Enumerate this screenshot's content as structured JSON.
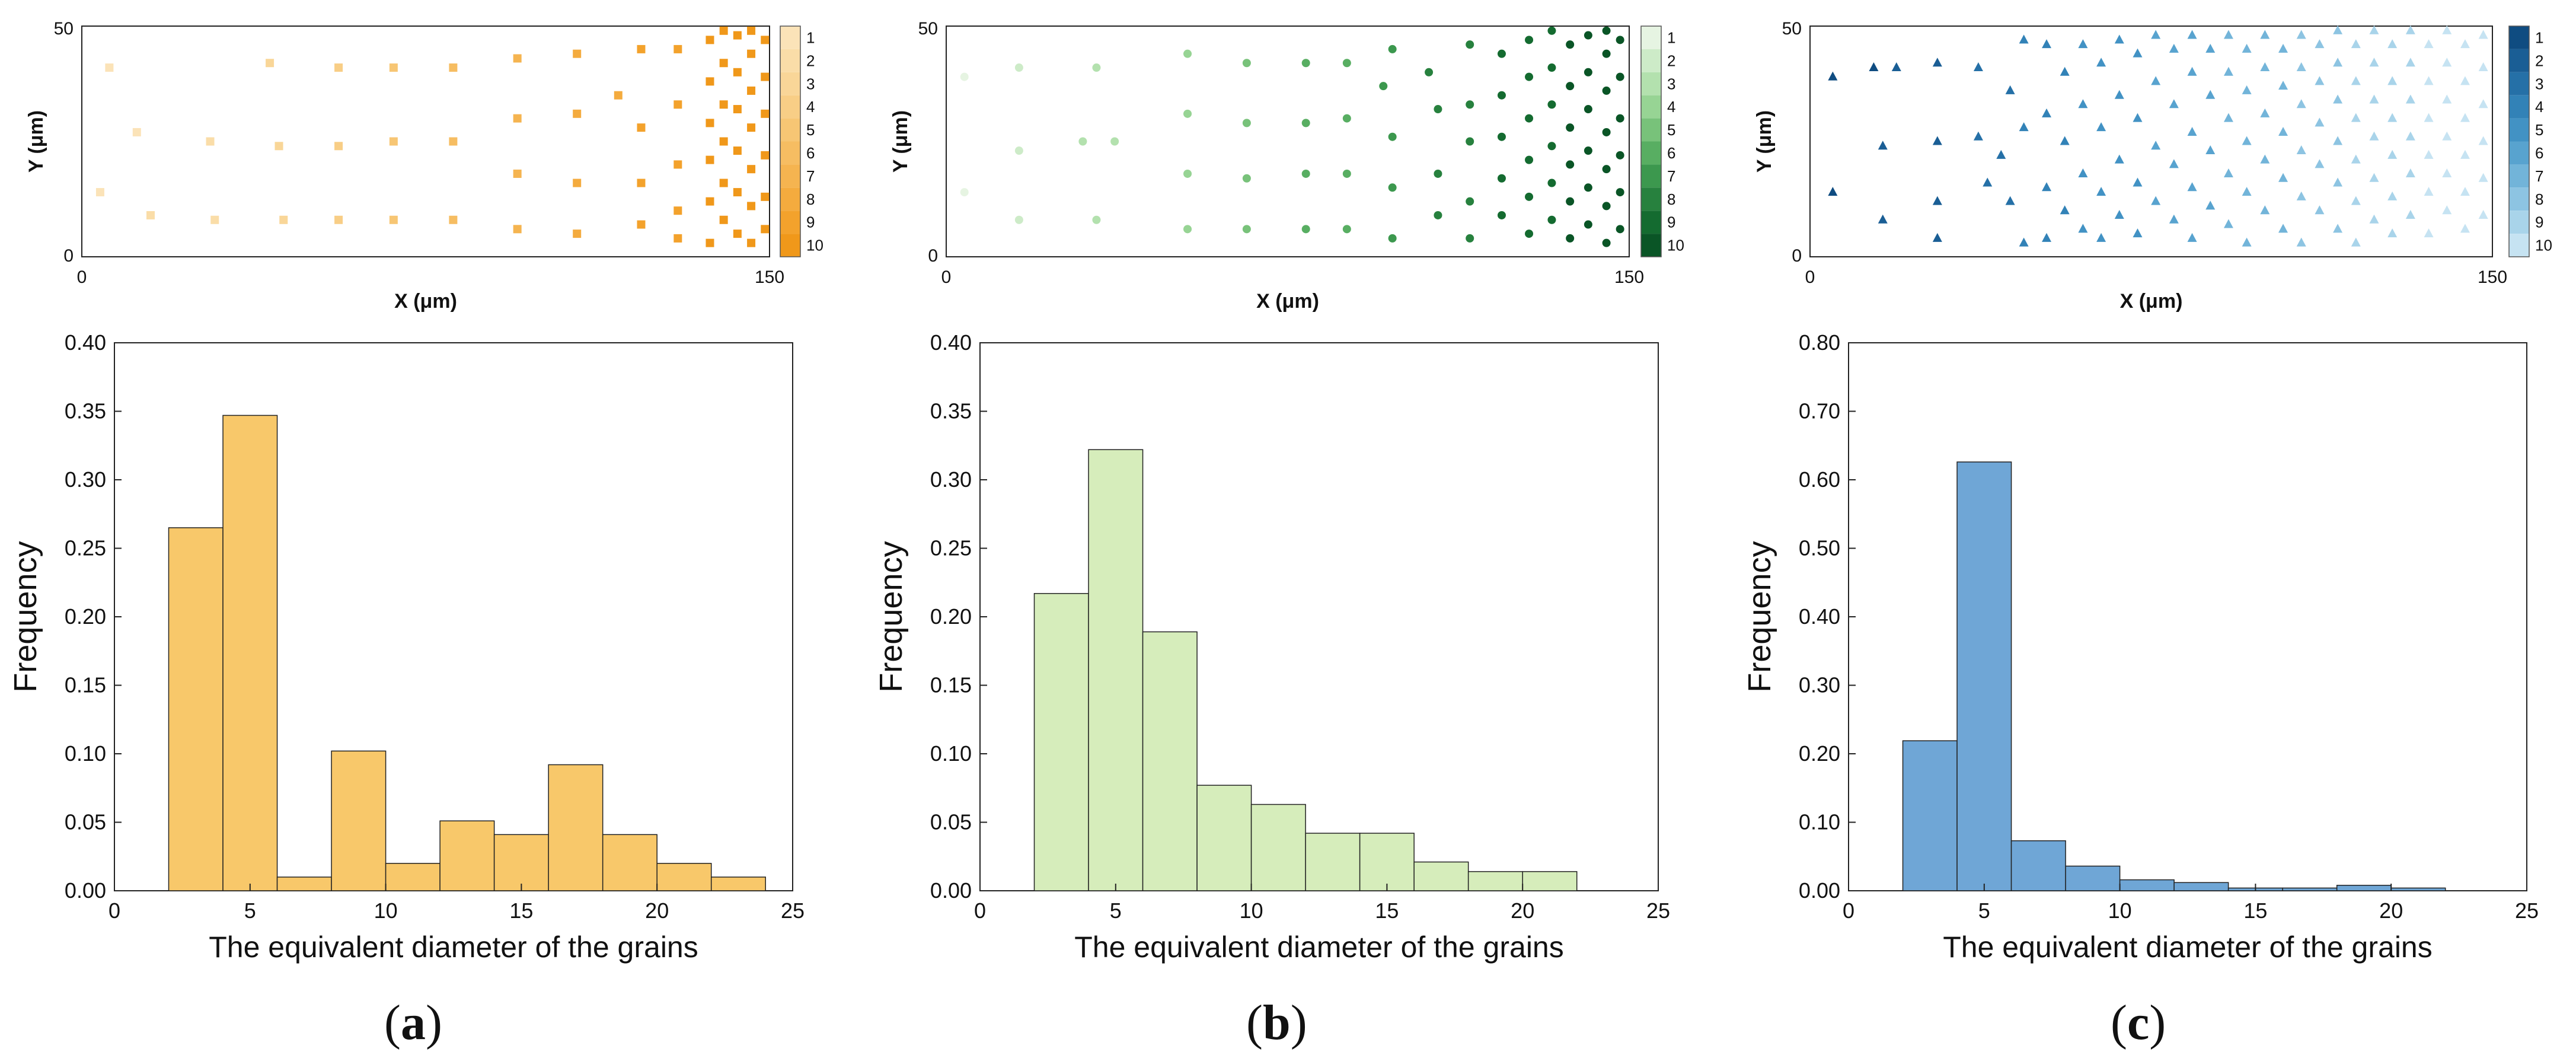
{
  "figure": {
    "panel_labels": [
      "(a)",
      "(b)",
      "(c)"
    ]
  },
  "chart_data": [
    {
      "type": "scatter",
      "panel": "a",
      "xlabel": "X (μm)",
      "ylabel": "Y (μm)",
      "xlim": [
        0,
        150
      ],
      "ylim": [
        0,
        50
      ],
      "x_ticks": [
        "0",
        "150"
      ],
      "y_ticks": [
        "0",
        "50"
      ],
      "marker": "square",
      "color": "#F0A020",
      "legend_ticks": [
        "1",
        "2",
        "3",
        "4",
        "5",
        "6",
        "7",
        "8",
        "9",
        "10"
      ],
      "legend_colors": [
        "#FBE3B8",
        "#FADDA8",
        "#F9D698",
        "#F8CE86",
        "#F7C674",
        "#F6BD62",
        "#F5B450",
        "#F4AB3E",
        "#F3A22C",
        "#F0981A"
      ],
      "points": [
        [
          6,
          41
        ],
        [
          4,
          14
        ],
        [
          12,
          27
        ],
        [
          15,
          9
        ],
        [
          28,
          25
        ],
        [
          29,
          8
        ],
        [
          41,
          42
        ],
        [
          43,
          24
        ],
        [
          44,
          8
        ],
        [
          56,
          41
        ],
        [
          56,
          24
        ],
        [
          56,
          8
        ],
        [
          68,
          41
        ],
        [
          68,
          25
        ],
        [
          68,
          8
        ],
        [
          81,
          41
        ],
        [
          81,
          25
        ],
        [
          81,
          8
        ],
        [
          95,
          43
        ],
        [
          95,
          30
        ],
        [
          95,
          18
        ],
        [
          95,
          6
        ],
        [
          108,
          44
        ],
        [
          108,
          31
        ],
        [
          108,
          16
        ],
        [
          108,
          5
        ],
        [
          117,
          35
        ],
        [
          122,
          45
        ],
        [
          122,
          28
        ],
        [
          122,
          16
        ],
        [
          122,
          7
        ],
        [
          130,
          45
        ],
        [
          130,
          33
        ],
        [
          130,
          20
        ],
        [
          130,
          10
        ],
        [
          130,
          4
        ],
        [
          137,
          47
        ],
        [
          137,
          38
        ],
        [
          137,
          29
        ],
        [
          137,
          21
        ],
        [
          137,
          12
        ],
        [
          137,
          3
        ],
        [
          140,
          49
        ],
        [
          140,
          42
        ],
        [
          140,
          33
        ],
        [
          140,
          25
        ],
        [
          140,
          16
        ],
        [
          140,
          8
        ],
        [
          143,
          48
        ],
        [
          143,
          40
        ],
        [
          143,
          32
        ],
        [
          143,
          23
        ],
        [
          143,
          14
        ],
        [
          143,
          5
        ],
        [
          146,
          49
        ],
        [
          146,
          44
        ],
        [
          146,
          36
        ],
        [
          146,
          28
        ],
        [
          146,
          19
        ],
        [
          146,
          11
        ],
        [
          146,
          3
        ],
        [
          149,
          47
        ],
        [
          149,
          39
        ],
        [
          149,
          31
        ],
        [
          149,
          22
        ],
        [
          149,
          13
        ],
        [
          149,
          6
        ]
      ]
    },
    {
      "type": "scatter",
      "panel": "b",
      "xlabel": "X (μm)",
      "ylabel": "Y (μm)",
      "xlim": [
        0,
        150
      ],
      "ylim": [
        0,
        50
      ],
      "x_ticks": [
        "0",
        "150"
      ],
      "y_ticks": [
        "0",
        "50"
      ],
      "marker": "circle",
      "color": "#2E8B3E",
      "legend_ticks": [
        "1",
        "2",
        "3",
        "4",
        "5",
        "6",
        "7",
        "8",
        "9",
        "10"
      ],
      "legend_colors": [
        "#E6F4E2",
        "#CDEBC8",
        "#B3E1AE",
        "#97D494",
        "#78C27A",
        "#58AE62",
        "#3C984E",
        "#27813E",
        "#146B30",
        "#0A5526"
      ],
      "points": [
        [
          4,
          39
        ],
        [
          4,
          14
        ],
        [
          16,
          41
        ],
        [
          16,
          23
        ],
        [
          16,
          8
        ],
        [
          30,
          25
        ],
        [
          33,
          41
        ],
        [
          33,
          8
        ],
        [
          37,
          25
        ],
        [
          53,
          44
        ],
        [
          53,
          31
        ],
        [
          53,
          18
        ],
        [
          53,
          6
        ],
        [
          66,
          42
        ],
        [
          66,
          29
        ],
        [
          66,
          17
        ],
        [
          66,
          6
        ],
        [
          79,
          42
        ],
        [
          79,
          29
        ],
        [
          79,
          18
        ],
        [
          79,
          6
        ],
        [
          88,
          42
        ],
        [
          88,
          30
        ],
        [
          88,
          18
        ],
        [
          88,
          6
        ],
        [
          96,
          37
        ],
        [
          98,
          45
        ],
        [
          98,
          26
        ],
        [
          98,
          15
        ],
        [
          98,
          4
        ],
        [
          106,
          40
        ],
        [
          108,
          32
        ],
        [
          108,
          18
        ],
        [
          108,
          9
        ],
        [
          115,
          46
        ],
        [
          115,
          33
        ],
        [
          115,
          25
        ],
        [
          115,
          12
        ],
        [
          115,
          4
        ],
        [
          122,
          44
        ],
        [
          122,
          35
        ],
        [
          122,
          26
        ],
        [
          122,
          17
        ],
        [
          122,
          9
        ],
        [
          128,
          47
        ],
        [
          128,
          39
        ],
        [
          128,
          30
        ],
        [
          128,
          21
        ],
        [
          128,
          13
        ],
        [
          128,
          5
        ],
        [
          133,
          49
        ],
        [
          133,
          41
        ],
        [
          133,
          33
        ],
        [
          133,
          24
        ],
        [
          133,
          16
        ],
        [
          133,
          8
        ],
        [
          137,
          46
        ],
        [
          137,
          37
        ],
        [
          137,
          28
        ],
        [
          137,
          20
        ],
        [
          137,
          12
        ],
        [
          137,
          4
        ],
        [
          141,
          48
        ],
        [
          141,
          40
        ],
        [
          141,
          32
        ],
        [
          141,
          23
        ],
        [
          141,
          15
        ],
        [
          141,
          7
        ],
        [
          145,
          49
        ],
        [
          145,
          44
        ],
        [
          145,
          36
        ],
        [
          145,
          27
        ],
        [
          145,
          19
        ],
        [
          145,
          11
        ],
        [
          145,
          3
        ],
        [
          148,
          47
        ],
        [
          148,
          39
        ],
        [
          148,
          30
        ],
        [
          148,
          22
        ],
        [
          148,
          14
        ],
        [
          148,
          6
        ]
      ]
    },
    {
      "type": "scatter",
      "panel": "c",
      "xlabel": "X (μm)",
      "ylabel": "Y (μm)",
      "xlim": [
        0,
        150
      ],
      "ylim": [
        0,
        50
      ],
      "x_ticks": [
        "0",
        "150"
      ],
      "y_ticks": [
        "0",
        "50"
      ],
      "marker": "triangle",
      "color": "#3A8CC6",
      "legend_ticks": [
        "1",
        "2",
        "3",
        "4",
        "5",
        "6",
        "7",
        "8",
        "9",
        "10"
      ],
      "legend_colors": [
        "#0F4C81",
        "#1A5E95",
        "#2570A7",
        "#3282B7",
        "#4292C4",
        "#58A3CF",
        "#72B4D9",
        "#8DC4E2",
        "#A9D4EA",
        "#C6E3F2"
      ],
      "points": [
        [
          5,
          39
        ],
        [
          5,
          14
        ],
        [
          14,
          41
        ],
        [
          16,
          24
        ],
        [
          16,
          8
        ],
        [
          19,
          41
        ],
        [
          28,
          42
        ],
        [
          28,
          25
        ],
        [
          28,
          12
        ],
        [
          28,
          4
        ],
        [
          37,
          41
        ],
        [
          37,
          26
        ],
        [
          39,
          16
        ],
        [
          42,
          22
        ],
        [
          44,
          36
        ],
        [
          44,
          12
        ],
        [
          47,
          47
        ],
        [
          47,
          28
        ],
        [
          47,
          3
        ],
        [
          52,
          46
        ],
        [
          52,
          31
        ],
        [
          52,
          15
        ],
        [
          52,
          4
        ],
        [
          56,
          40
        ],
        [
          56,
          25
        ],
        [
          56,
          10
        ],
        [
          60,
          46
        ],
        [
          60,
          33
        ],
        [
          60,
          18
        ],
        [
          60,
          6
        ],
        [
          64,
          42
        ],
        [
          64,
          28
        ],
        [
          64,
          14
        ],
        [
          64,
          4
        ],
        [
          68,
          47
        ],
        [
          68,
          35
        ],
        [
          68,
          21
        ],
        [
          68,
          9
        ],
        [
          72,
          44
        ],
        [
          72,
          30
        ],
        [
          72,
          16
        ],
        [
          72,
          5
        ],
        [
          76,
          48
        ],
        [
          76,
          38
        ],
        [
          76,
          24
        ],
        [
          76,
          12
        ],
        [
          80,
          45
        ],
        [
          80,
          33
        ],
        [
          80,
          20
        ],
        [
          80,
          8
        ],
        [
          84,
          48
        ],
        [
          84,
          40
        ],
        [
          84,
          27
        ],
        [
          84,
          15
        ],
        [
          84,
          4
        ],
        [
          88,
          45
        ],
        [
          88,
          35
        ],
        [
          88,
          23
        ],
        [
          88,
          11
        ],
        [
          92,
          48
        ],
        [
          92,
          40
        ],
        [
          92,
          30
        ],
        [
          92,
          18
        ],
        [
          92,
          7
        ],
        [
          96,
          45
        ],
        [
          96,
          36
        ],
        [
          96,
          25
        ],
        [
          96,
          14
        ],
        [
          96,
          3
        ],
        [
          100,
          48
        ],
        [
          100,
          41
        ],
        [
          100,
          31
        ],
        [
          100,
          21
        ],
        [
          100,
          10
        ],
        [
          104,
          45
        ],
        [
          104,
          37
        ],
        [
          104,
          27
        ],
        [
          104,
          17
        ],
        [
          104,
          6
        ],
        [
          108,
          48
        ],
        [
          108,
          41
        ],
        [
          108,
          33
        ],
        [
          108,
          23
        ],
        [
          108,
          13
        ],
        [
          108,
          3
        ],
        [
          112,
          46
        ],
        [
          112,
          38
        ],
        [
          112,
          29
        ],
        [
          112,
          20
        ],
        [
          112,
          10
        ],
        [
          116,
          49
        ],
        [
          116,
          42
        ],
        [
          116,
          34
        ],
        [
          116,
          25
        ],
        [
          116,
          16
        ],
        [
          116,
          6
        ],
        [
          120,
          46
        ],
        [
          120,
          38
        ],
        [
          120,
          30
        ],
        [
          120,
          21
        ],
        [
          120,
          12
        ],
        [
          120,
          3
        ],
        [
          124,
          49
        ],
        [
          124,
          42
        ],
        [
          124,
          34
        ],
        [
          124,
          26
        ],
        [
          124,
          17
        ],
        [
          124,
          8
        ],
        [
          128,
          46
        ],
        [
          128,
          38
        ],
        [
          128,
          30
        ],
        [
          128,
          22
        ],
        [
          128,
          13
        ],
        [
          128,
          5
        ],
        [
          132,
          49
        ],
        [
          132,
          42
        ],
        [
          132,
          34
        ],
        [
          132,
          26
        ],
        [
          132,
          18
        ],
        [
          132,
          9
        ],
        [
          136,
          46
        ],
        [
          136,
          38
        ],
        [
          136,
          30
        ],
        [
          136,
          22
        ],
        [
          136,
          14
        ],
        [
          136,
          5
        ],
        [
          140,
          49
        ],
        [
          140,
          42
        ],
        [
          140,
          34
        ],
        [
          140,
          26
        ],
        [
          140,
          18
        ],
        [
          140,
          10
        ],
        [
          144,
          46
        ],
        [
          144,
          38
        ],
        [
          144,
          30
        ],
        [
          144,
          22
        ],
        [
          144,
          14
        ],
        [
          144,
          6
        ],
        [
          148,
          48
        ],
        [
          148,
          41
        ],
        [
          148,
          33
        ],
        [
          148,
          25
        ],
        [
          148,
          17
        ],
        [
          148,
          9
        ]
      ]
    },
    {
      "type": "bar",
      "panel": "a",
      "xlabel": "The equivalent diameter of the grains",
      "ylabel": "Frequency",
      "xlim": [
        0,
        25
      ],
      "ylim": [
        0,
        0.4
      ],
      "x_ticks": [
        "0",
        "5",
        "10",
        "15",
        "20",
        "25"
      ],
      "y_ticks": [
        "0.00",
        "0.05",
        "0.10",
        "0.15",
        "0.20",
        "0.25",
        "0.30",
        "0.35",
        "0.40"
      ],
      "bin_edges": [
        2,
        4,
        6,
        8,
        10,
        12,
        14,
        16,
        18,
        20,
        22,
        24
      ],
      "values": [
        0.265,
        0.347,
        0.01,
        0.102,
        0.02,
        0.051,
        0.041,
        0.092,
        0.041,
        0.02,
        0.01
      ],
      "color": "#F8C86A"
    },
    {
      "type": "bar",
      "panel": "b",
      "xlabel": "The equivalent diameter of the grains",
      "ylabel": "Frequency",
      "xlim": [
        0,
        25
      ],
      "ylim": [
        0,
        0.4
      ],
      "x_ticks": [
        "0",
        "5",
        "10",
        "15",
        "20",
        "25"
      ],
      "y_ticks": [
        "0.00",
        "0.05",
        "0.10",
        "0.15",
        "0.20",
        "0.25",
        "0.30",
        "0.35",
        "0.40"
      ],
      "bin_edges": [
        2,
        4,
        6,
        8,
        10,
        12,
        14,
        16,
        18,
        20,
        22
      ],
      "values": [
        0.217,
        0.322,
        0.189,
        0.077,
        0.063,
        0.042,
        0.042,
        0.021,
        0.014,
        0.014
      ],
      "color": "#D6EDBB"
    },
    {
      "type": "bar",
      "panel": "c",
      "xlabel": "The equivalent diameter of the grains",
      "ylabel": "Frequency",
      "xlim": [
        0,
        25
      ],
      "ylim": [
        0,
        0.8
      ],
      "x_ticks": [
        "0",
        "5",
        "10",
        "15",
        "20",
        "25"
      ],
      "y_ticks": [
        "0.00",
        "0.10",
        "0.20",
        "0.30",
        "0.40",
        "0.50",
        "0.60",
        "0.70",
        "0.80"
      ],
      "bin_edges": [
        2,
        4,
        6,
        8,
        10,
        12,
        14,
        16,
        18,
        20,
        22
      ],
      "values": [
        0.219,
        0.626,
        0.073,
        0.036,
        0.016,
        0.012,
        0.004,
        0.004,
        0.008,
        0.004
      ],
      "color": "#6FA6D6"
    }
  ]
}
